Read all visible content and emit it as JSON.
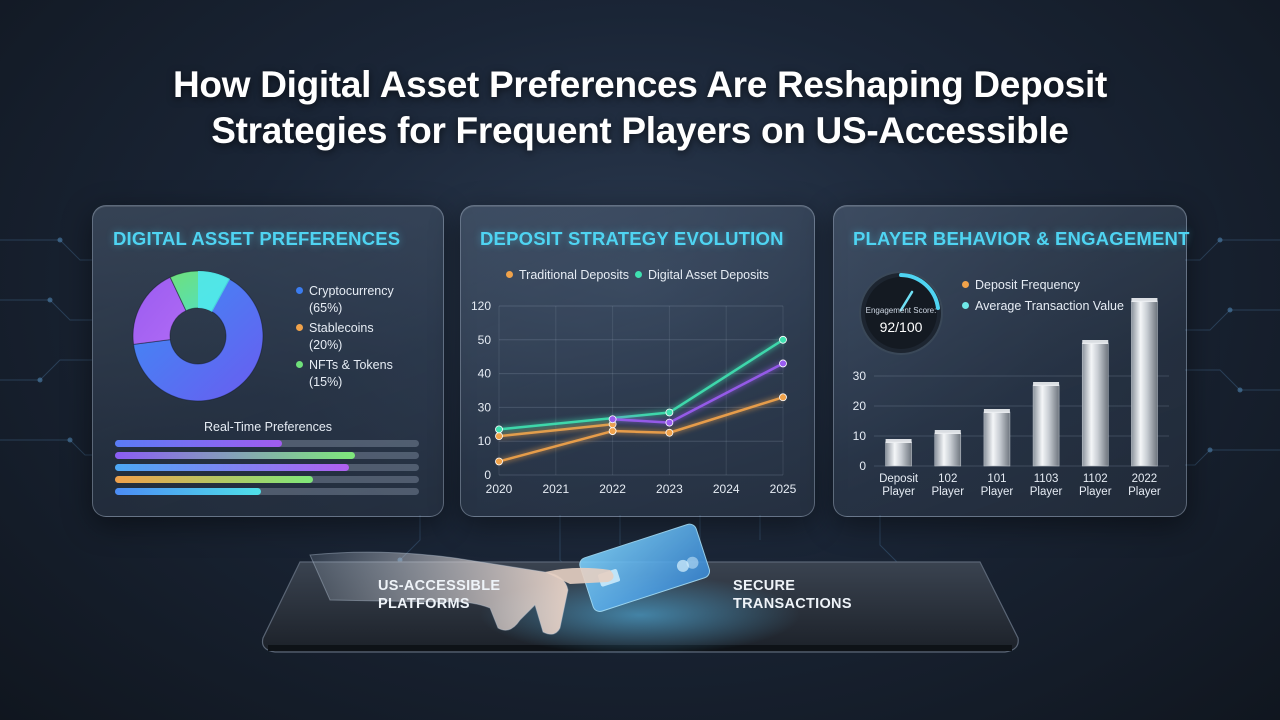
{
  "title": {
    "line1": "How Digital Asset Preferences Are Reshaping Deposit",
    "line2": "Strategies for Frequent Players on US-Accessible"
  },
  "panel_preferences": {
    "title": "DIGITAL ASSET PREFERENCES",
    "legend": [
      {
        "label": "Cryptocurrency",
        "value": "(65%)",
        "color": "#3b7cf0"
      },
      {
        "label": "Stablecoins",
        "value": "(20%)",
        "color": "#f0a24a"
      },
      {
        "label": "NFTs & Tokens",
        "value": "(15%)",
        "color": "#6fe07a"
      }
    ],
    "realtime_label": "Real-Time Preferences",
    "realtime_bars": [
      {
        "fill": 0.55,
        "color_from": "#5a7cf5",
        "color_to": "#a05cf0"
      },
      {
        "fill": 0.79,
        "color_from": "#8a5cf5",
        "color_to": "#7fe87a"
      },
      {
        "fill": 0.77,
        "color_from": "#4ca8f5",
        "color_to": "#b060f0"
      },
      {
        "fill": 0.65,
        "color_from": "#f0a04a",
        "color_to": "#7fe87a"
      },
      {
        "fill": 0.48,
        "color_from": "#4c8cf5",
        "color_to": "#4fe0e8"
      }
    ]
  },
  "panel_evolution": {
    "title": "DEPOSIT STRATEGY EVOLUTION",
    "legend": [
      {
        "label": "Traditional Deposits",
        "color": "#f0a24a"
      },
      {
        "label": "Digital Asset Deposits",
        "color": "#3fe0b0"
      }
    ]
  },
  "panel_behavior": {
    "title": "PLAYER BEHAVIOR & ENGAGEMENT",
    "gauge_label": "Engagement Score:",
    "gauge_value": "92/100",
    "legend": [
      {
        "label": "Deposit Frequency",
        "color": "#f0a24a"
      },
      {
        "label": "Average Transaction Value",
        "color": "#6fe8e8"
      }
    ]
  },
  "bottom": {
    "left_label_1": "US-ACCESSIBLE",
    "left_label_2": "PLATFORMS",
    "right_label_1": "SECURE",
    "right_label_2": "TRANSACTIONS"
  },
  "chart_data": [
    {
      "type": "pie",
      "title": "DIGITAL ASSET PREFERENCES",
      "categories": [
        "Cryptocurrency",
        "Stablecoins",
        "NFTs & Tokens"
      ],
      "values": [
        65,
        20,
        15
      ]
    },
    {
      "type": "line",
      "title": "DEPOSIT STRATEGY EVOLUTION",
      "x": [
        "2020",
        "2021",
        "2022",
        "2023",
        "2024",
        "2025"
      ],
      "y_ticks": [
        "0",
        "10",
        "30",
        "40",
        "50",
        "120"
      ],
      "series": [
        {
          "name": "Traditional Deposits",
          "color": "#f0a24a",
          "x": [
            2020,
            2022,
            2023,
            2025
          ],
          "values": [
            4,
            16,
            15,
            33
          ]
        },
        {
          "name": "Traditional Deposits",
          "color": "#f0a24a",
          "x": [
            2020,
            2022
          ],
          "values": [
            13,
            20
          ]
        },
        {
          "name": "Digital Asset Deposits",
          "color": "#3fe0b0",
          "x": [
            2020,
            2023,
            2025
          ],
          "values": [
            17,
            27,
            50
          ]
        },
        {
          "name": "",
          "color": "#9a5cf0",
          "x": [
            2022,
            2023,
            2025
          ],
          "values": [
            23,
            21,
            43
          ]
        }
      ],
      "grid": true,
      "legend": "top"
    },
    {
      "type": "bar",
      "title": "PLAYER BEHAVIOR & ENGAGEMENT",
      "categories": [
        "Deposit\nPlayer",
        "102\nPlayer",
        "101\nPlayer",
        "1103\nPlayer",
        "1102\nPlayer",
        "2022\nPlayer"
      ],
      "values": [
        8,
        11,
        18,
        27,
        41,
        55
      ],
      "y_ticks": [
        "0",
        "10",
        "20",
        "30"
      ],
      "grid": true
    }
  ]
}
